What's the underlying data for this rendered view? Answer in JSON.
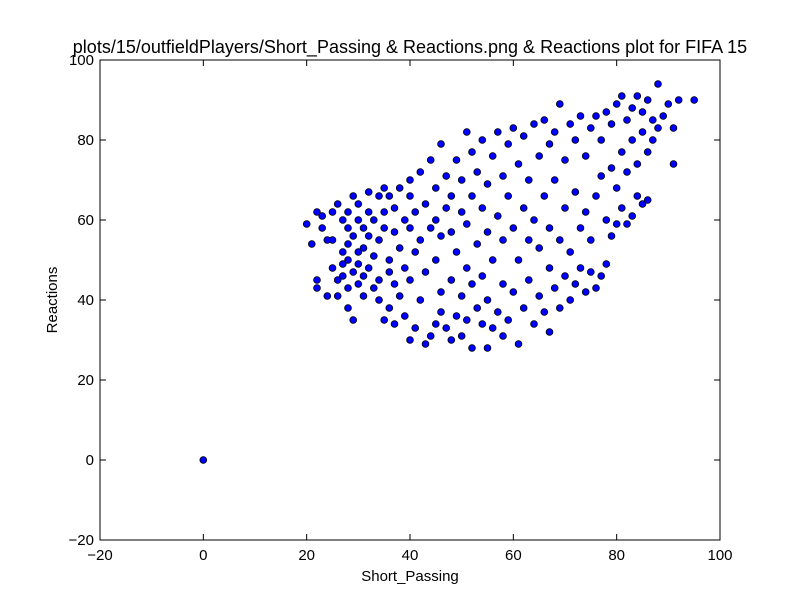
{
  "chart_data": {
    "type": "scatter",
    "title": "plots/15/outfieldPlayers/Short_Passing & Reactions.png & Reactions plot for FIFA 15",
    "xlabel": "Short_Passing",
    "ylabel": "Reactions",
    "xlim": [
      -20,
      100
    ],
    "ylim": [
      -20,
      100
    ],
    "xticks": [
      -20,
      0,
      20,
      40,
      60,
      80,
      100
    ],
    "yticks": [
      -20,
      0,
      20,
      40,
      60,
      80,
      100
    ],
    "xtick_labels": [
      "−20",
      "0",
      "20",
      "40",
      "60",
      "80",
      "100"
    ],
    "ytick_labels": [
      "−20",
      "0",
      "20",
      "40",
      "60",
      "80",
      "100"
    ],
    "grid": false,
    "marker_color": "#0000ff",
    "marker_edge": "#000000",
    "series": [
      {
        "points": [
          [
            0,
            0
          ],
          [
            20,
            59
          ],
          [
            21,
            54
          ],
          [
            22,
            62
          ],
          [
            22,
            45
          ],
          [
            22,
            43
          ],
          [
            23,
            58
          ],
          [
            23,
            61
          ],
          [
            24,
            55
          ],
          [
            24,
            41
          ],
          [
            25,
            48
          ],
          [
            25,
            62
          ],
          [
            25,
            55
          ],
          [
            26,
            64
          ],
          [
            26,
            45
          ],
          [
            26,
            41
          ],
          [
            27,
            60
          ],
          [
            27,
            52
          ],
          [
            27,
            49
          ],
          [
            27,
            46
          ],
          [
            28,
            54
          ],
          [
            28,
            62
          ],
          [
            28,
            50
          ],
          [
            28,
            43
          ],
          [
            28,
            38
          ],
          [
            28,
            58
          ],
          [
            29,
            35
          ],
          [
            29,
            66
          ],
          [
            29,
            56
          ],
          [
            29,
            47
          ],
          [
            30,
            60
          ],
          [
            30,
            52
          ],
          [
            30,
            44
          ],
          [
            30,
            49
          ],
          [
            30,
            64
          ],
          [
            31,
            58
          ],
          [
            31,
            46
          ],
          [
            31,
            53
          ],
          [
            31,
            41
          ],
          [
            32,
            62
          ],
          [
            32,
            67
          ],
          [
            32,
            48
          ],
          [
            32,
            56
          ],
          [
            33,
            43
          ],
          [
            33,
            60
          ],
          [
            33,
            51
          ],
          [
            34,
            66
          ],
          [
            34,
            45
          ],
          [
            34,
            55
          ],
          [
            34,
            40
          ],
          [
            35,
            35
          ],
          [
            35,
            68
          ],
          [
            35,
            58
          ],
          [
            35,
            62
          ],
          [
            36,
            47
          ],
          [
            36,
            50
          ],
          [
            36,
            38
          ],
          [
            36,
            66
          ],
          [
            37,
            34
          ],
          [
            37,
            57
          ],
          [
            37,
            63
          ],
          [
            37,
            44
          ],
          [
            38,
            41
          ],
          [
            38,
            53
          ],
          [
            38,
            68
          ],
          [
            39,
            36
          ],
          [
            39,
            60
          ],
          [
            39,
            48
          ],
          [
            40,
            30
          ],
          [
            40,
            58
          ],
          [
            40,
            66
          ],
          [
            40,
            70
          ],
          [
            40,
            45
          ],
          [
            41,
            33
          ],
          [
            41,
            52
          ],
          [
            41,
            62
          ],
          [
            42,
            40
          ],
          [
            42,
            55
          ],
          [
            42,
            72
          ],
          [
            43,
            29
          ],
          [
            43,
            47
          ],
          [
            43,
            64
          ],
          [
            44,
            31
          ],
          [
            44,
            58
          ],
          [
            44,
            75
          ],
          [
            45,
            34
          ],
          [
            45,
            50
          ],
          [
            45,
            60
          ],
          [
            45,
            68
          ],
          [
            46,
            37
          ],
          [
            46,
            42
          ],
          [
            46,
            56
          ],
          [
            46,
            79
          ],
          [
            47,
            33
          ],
          [
            47,
            63
          ],
          [
            47,
            71
          ],
          [
            48,
            30
          ],
          [
            48,
            45
          ],
          [
            48,
            57
          ],
          [
            48,
            66
          ],
          [
            49,
            36
          ],
          [
            49,
            52
          ],
          [
            49,
            75
          ],
          [
            50,
            31
          ],
          [
            50,
            41
          ],
          [
            50,
            62
          ],
          [
            50,
            70
          ],
          [
            51,
            82
          ],
          [
            51,
            35
          ],
          [
            51,
            48
          ],
          [
            51,
            59
          ],
          [
            52,
            28
          ],
          [
            52,
            44
          ],
          [
            52,
            66
          ],
          [
            52,
            77
          ],
          [
            53,
            38
          ],
          [
            53,
            54
          ],
          [
            53,
            72
          ],
          [
            54,
            34
          ],
          [
            54,
            46
          ],
          [
            54,
            63
          ],
          [
            54,
            80
          ],
          [
            55,
            28
          ],
          [
            55,
            40
          ],
          [
            55,
            57
          ],
          [
            55,
            69
          ],
          [
            56,
            33
          ],
          [
            56,
            50
          ],
          [
            56,
            76
          ],
          [
            57,
            37
          ],
          [
            57,
            61
          ],
          [
            57,
            82
          ],
          [
            58,
            31
          ],
          [
            58,
            44
          ],
          [
            58,
            55
          ],
          [
            58,
            71
          ],
          [
            59,
            35
          ],
          [
            59,
            66
          ],
          [
            59,
            79
          ],
          [
            60,
            42
          ],
          [
            60,
            58
          ],
          [
            60,
            83
          ],
          [
            61,
            29
          ],
          [
            61,
            50
          ],
          [
            61,
            74
          ],
          [
            62,
            38
          ],
          [
            62,
            63
          ],
          [
            62,
            81
          ],
          [
            63,
            45
          ],
          [
            63,
            55
          ],
          [
            63,
            70
          ],
          [
            64,
            34
          ],
          [
            64,
            60
          ],
          [
            64,
            84
          ],
          [
            65,
            41
          ],
          [
            65,
            53
          ],
          [
            65,
            76
          ],
          [
            66,
            37
          ],
          [
            66,
            66
          ],
          [
            66,
            85
          ],
          [
            67,
            32
          ],
          [
            67,
            48
          ],
          [
            67,
            58
          ],
          [
            67,
            79
          ],
          [
            68,
            43
          ],
          [
            68,
            70
          ],
          [
            68,
            82
          ],
          [
            69,
            38
          ],
          [
            69,
            55
          ],
          [
            69,
            89
          ],
          [
            70,
            46
          ],
          [
            70,
            63
          ],
          [
            70,
            75
          ],
          [
            71,
            40
          ],
          [
            71,
            52
          ],
          [
            71,
            84
          ],
          [
            72,
            44
          ],
          [
            72,
            67
          ],
          [
            72,
            80
          ],
          [
            73,
            48
          ],
          [
            73,
            58
          ],
          [
            73,
            86
          ],
          [
            74,
            42
          ],
          [
            74,
            62
          ],
          [
            74,
            76
          ],
          [
            75,
            47
          ],
          [
            75,
            55
          ],
          [
            75,
            83
          ],
          [
            76,
            43
          ],
          [
            76,
            66
          ],
          [
            76,
            86
          ],
          [
            77,
            46
          ],
          [
            77,
            71
          ],
          [
            77,
            80
          ],
          [
            78,
            49
          ],
          [
            78,
            60
          ],
          [
            78,
            87
          ],
          [
            79,
            56
          ],
          [
            79,
            73
          ],
          [
            79,
            84
          ],
          [
            80,
            59
          ],
          [
            80,
            68
          ],
          [
            80,
            89
          ],
          [
            81,
            63
          ],
          [
            81,
            77
          ],
          [
            81,
            91
          ],
          [
            82,
            59
          ],
          [
            82,
            72
          ],
          [
            82,
            85
          ],
          [
            83,
            61
          ],
          [
            83,
            80
          ],
          [
            83,
            88
          ],
          [
            84,
            66
          ],
          [
            84,
            74
          ],
          [
            84,
            91
          ],
          [
            85,
            64
          ],
          [
            85,
            82
          ],
          [
            85,
            87
          ],
          [
            86,
            65
          ],
          [
            86,
            77
          ],
          [
            86,
            90
          ],
          [
            87,
            80
          ],
          [
            87,
            85
          ],
          [
            88,
            94
          ],
          [
            88,
            83
          ],
          [
            89,
            86
          ],
          [
            90,
            89
          ],
          [
            91,
            83
          ],
          [
            91,
            74
          ],
          [
            92,
            90
          ],
          [
            95,
            90
          ]
        ]
      }
    ]
  }
}
